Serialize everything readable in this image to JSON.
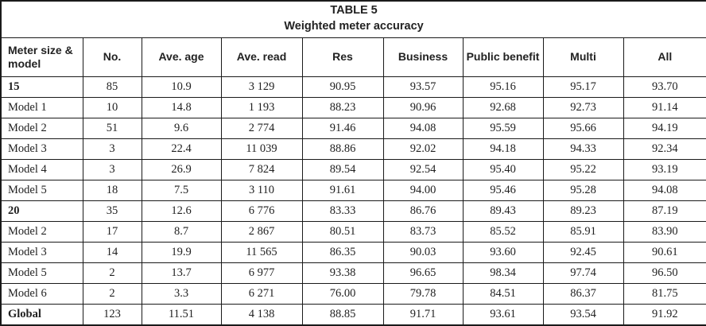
{
  "table": {
    "title_line1": "TABLE 5",
    "title_line2": "Weighted meter accuracy",
    "columns": [
      "Meter size & model",
      "No.",
      "Ave. age",
      "Ave. read",
      "Res",
      "Business",
      "Public benefit",
      "Multi",
      "All"
    ],
    "rows": [
      {
        "label": "15",
        "bold": true,
        "values": [
          "85",
          "10.9",
          "3 129",
          "90.95",
          "93.57",
          "95.16",
          "95.17",
          "93.70"
        ]
      },
      {
        "label": "Model 1",
        "bold": false,
        "values": [
          "10",
          "14.8",
          "1 193",
          "88.23",
          "90.96",
          "92.68",
          "92.73",
          "91.14"
        ]
      },
      {
        "label": "Model 2",
        "bold": false,
        "values": [
          "51",
          "9.6",
          "2 774",
          "91.46",
          "94.08",
          "95.59",
          "95.66",
          "94.19"
        ]
      },
      {
        "label": "Model 3",
        "bold": false,
        "values": [
          "3",
          "22.4",
          "11 039",
          "88.86",
          "92.02",
          "94.18",
          "94.33",
          "92.34"
        ]
      },
      {
        "label": "Model 4",
        "bold": false,
        "values": [
          "3",
          "26.9",
          "7 824",
          "89.54",
          "92.54",
          "95.40",
          "95.22",
          "93.19"
        ]
      },
      {
        "label": "Model 5",
        "bold": false,
        "values": [
          "18",
          "7.5",
          "3 110",
          "91.61",
          "94.00",
          "95.46",
          "95.28",
          "94.08"
        ]
      },
      {
        "label": "20",
        "bold": true,
        "values": [
          "35",
          "12.6",
          "6 776",
          "83.33",
          "86.76",
          "89.43",
          "89.23",
          "87.19"
        ]
      },
      {
        "label": "Model 2",
        "bold": false,
        "values": [
          "17",
          "8.7",
          "2 867",
          "80.51",
          "83.73",
          "85.52",
          "85.91",
          "83.90"
        ]
      },
      {
        "label": "Model 3",
        "bold": false,
        "values": [
          "14",
          "19.9",
          "11 565",
          "86.35",
          "90.03",
          "93.60",
          "92.45",
          "90.61"
        ]
      },
      {
        "label": "Model 5",
        "bold": false,
        "values": [
          "2",
          "13.7",
          "6 977",
          "93.38",
          "96.65",
          "98.34",
          "97.74",
          "96.50"
        ]
      },
      {
        "label": "Model 6",
        "bold": false,
        "values": [
          "2",
          "3.3",
          "6 271",
          "76.00",
          "79.78",
          "84.51",
          "86.37",
          "81.75"
        ]
      },
      {
        "label": "Global",
        "bold": true,
        "values": [
          "123",
          "11.51",
          "4 138",
          "88.85",
          "91.71",
          "93.61",
          "93.54",
          "91.92"
        ]
      }
    ]
  },
  "colors": {
    "border": "#1a1a1a",
    "text": "#222222",
    "background": "#ffffff"
  }
}
